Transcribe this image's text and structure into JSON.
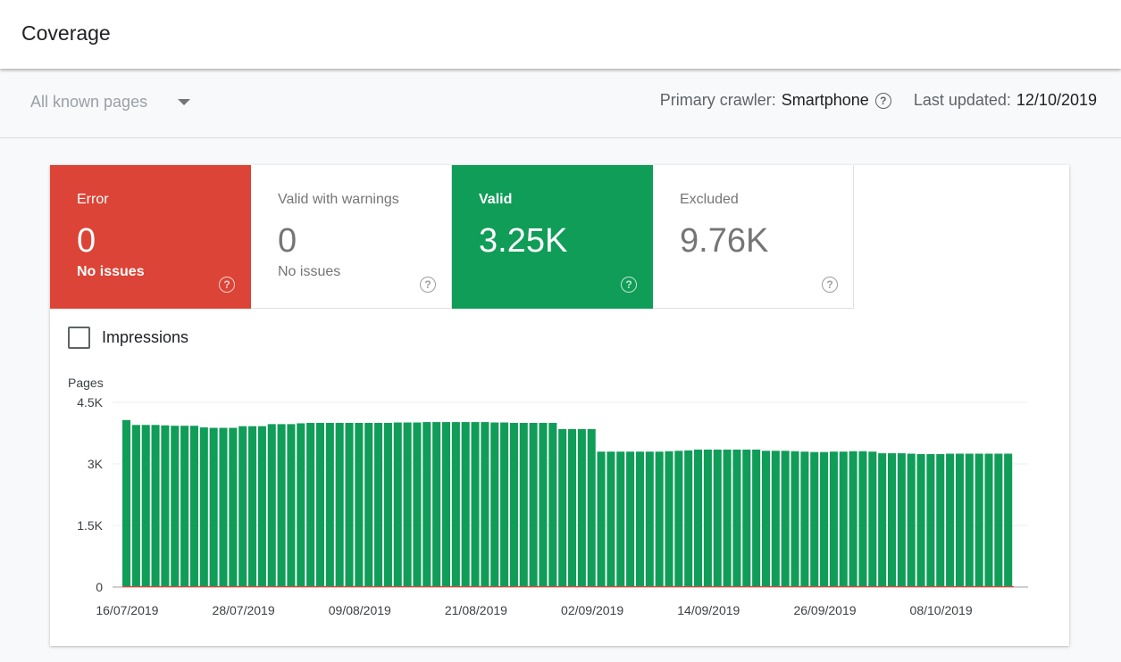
{
  "header": {
    "title": "Coverage"
  },
  "filter": {
    "selected": "All known pages",
    "caret_icon": "dropdown-caret-icon"
  },
  "meta": {
    "crawler_label": "Primary crawler:",
    "crawler_value": "Smartphone",
    "updated_label": "Last updated:",
    "updated_value": "12/10/2019",
    "help_icon": "help-circle-icon",
    "help_glyph": "?"
  },
  "tiles": {
    "error": {
      "label": "Error",
      "value": "0",
      "sub": "No issues",
      "color": "#db4437"
    },
    "warn": {
      "label": "Valid with warnings",
      "value": "0",
      "sub": "No issues"
    },
    "valid": {
      "label": "Valid",
      "value": "3.25K",
      "sub": "",
      "color": "#0f9d58"
    },
    "excl": {
      "label": "Excluded",
      "value": "9.76K",
      "sub": ""
    }
  },
  "impressions": {
    "label": "Impressions",
    "checked": false
  },
  "chart_data": {
    "type": "bar",
    "ylabel": "Pages",
    "ylim": [
      0,
      4500
    ],
    "yticks": [
      {
        "v": 0,
        "label": "0"
      },
      {
        "v": 1500,
        "label": "1.5K"
      },
      {
        "v": 3000,
        "label": "3K"
      },
      {
        "v": 4500,
        "label": "4.5K"
      }
    ],
    "x_tick_labels": [
      "16/07/2019",
      "28/07/2019",
      "09/08/2019",
      "21/08/2019",
      "02/09/2019",
      "14/09/2019",
      "26/09/2019",
      "08/10/2019"
    ],
    "x_tick_every": 12,
    "grid": true,
    "series": [
      {
        "color": "#0f9d58",
        "values": [
          4070,
          3950,
          3950,
          3950,
          3940,
          3930,
          3930,
          3930,
          3890,
          3880,
          3880,
          3880,
          3920,
          3920,
          3920,
          3970,
          3970,
          3970,
          3990,
          4000,
          4000,
          4000,
          4000,
          4000,
          4000,
          4000,
          4000,
          4000,
          4010,
          4010,
          4010,
          4020,
          4020,
          4020,
          4020,
          4020,
          4020,
          4020,
          4010,
          4010,
          4000,
          4000,
          4000,
          4000,
          4000,
          3850,
          3850,
          3850,
          3850,
          3300,
          3300,
          3300,
          3300,
          3300,
          3300,
          3300,
          3310,
          3320,
          3330,
          3350,
          3350,
          3350,
          3350,
          3350,
          3350,
          3350,
          3320,
          3320,
          3320,
          3310,
          3300,
          3290,
          3290,
          3300,
          3300,
          3310,
          3310,
          3300,
          3260,
          3260,
          3260,
          3250,
          3240,
          3240,
          3240,
          3250,
          3250,
          3250,
          3250,
          3250,
          3250,
          3250
        ]
      },
      {
        "color": "#db4437",
        "values": "zero"
      }
    ]
  }
}
